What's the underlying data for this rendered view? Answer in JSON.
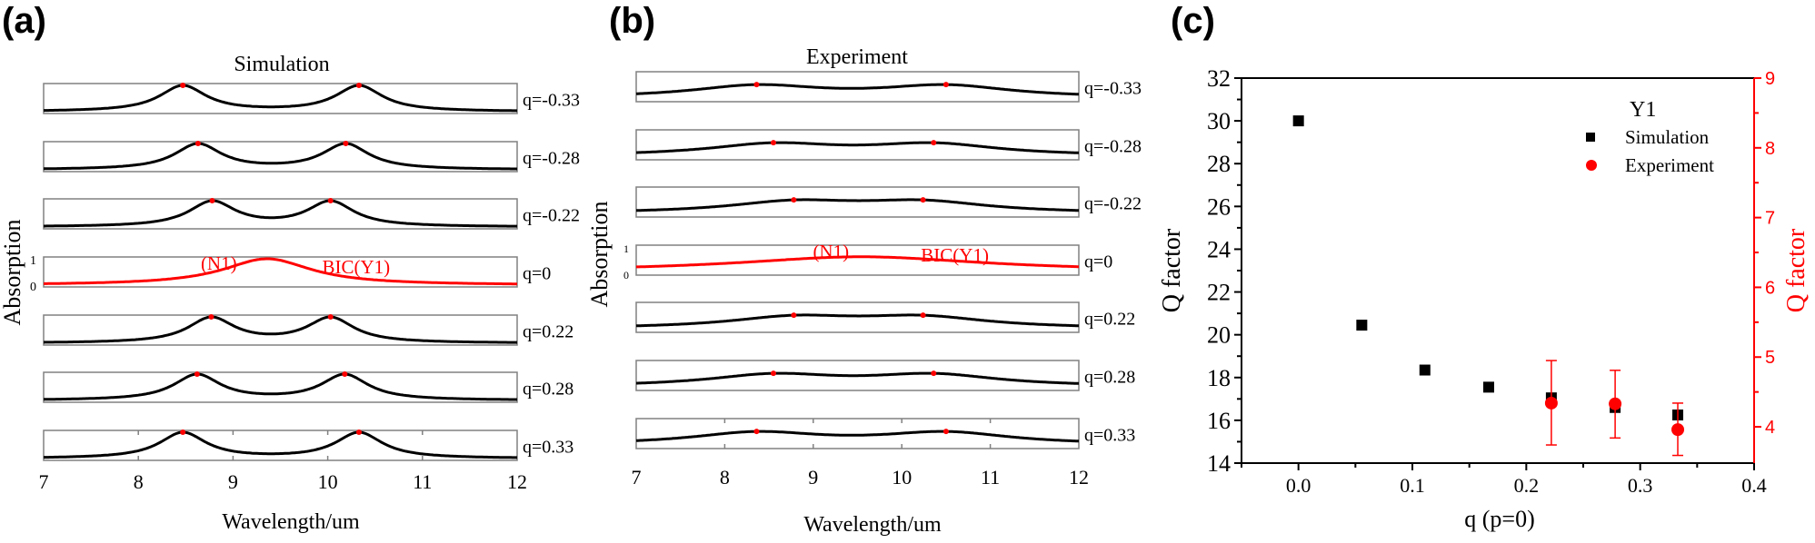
{
  "colors": {
    "black": "#000000",
    "red": "#ff0000",
    "frame": "#808080"
  },
  "chart_data": [
    {
      "type": "line",
      "panel_label": "(a)",
      "title": "Simulation",
      "xlabel": "Wavelength/um",
      "ylabel": "Absorption",
      "xlim": [
        7,
        12
      ],
      "ylim": [
        0,
        1
      ],
      "x_ticks": [
        "7",
        "8",
        "9",
        "10",
        "11",
        "12"
      ],
      "y_ticks_reference": [
        "0",
        "1"
      ],
      "annotations": [
        "(N1)",
        "BIC(Y1)"
      ],
      "series": [
        {
          "name": "q=-0.33",
          "peaks": [
            8.47,
            10.33
          ],
          "color": "#000000"
        },
        {
          "name": "q=-0.28",
          "peaks": [
            8.63,
            10.19
          ],
          "color": "#000000"
        },
        {
          "name": "q=-0.22",
          "peaks": [
            8.78,
            10.03
          ],
          "color": "#000000"
        },
        {
          "name": "q=0",
          "peaks": [
            9.36
          ],
          "color": "#ff0000"
        },
        {
          "name": "q=0.22",
          "peaks": [
            8.77,
            10.03
          ],
          "color": "#000000"
        },
        {
          "name": "q=0.28",
          "peaks": [
            8.62,
            10.18
          ],
          "color": "#000000"
        },
        {
          "name": "q=0.33",
          "peaks": [
            8.47,
            10.33
          ],
          "color": "#000000"
        }
      ]
    },
    {
      "type": "line",
      "panel_label": "(b)",
      "title": "Experiment",
      "xlabel": "Wavelength/um",
      "ylabel": "Absorption",
      "xlim": [
        7,
        12
      ],
      "ylim": [
        0,
        1
      ],
      "x_ticks": [
        "7",
        "8",
        "9",
        "10",
        "11",
        "12"
      ],
      "y_ticks_reference": [
        "0",
        "1"
      ],
      "annotations": [
        "(N1)",
        "BIC(Y1)"
      ],
      "series": [
        {
          "name": "q=-0.33",
          "peaks": [
            8.36,
            10.5
          ],
          "color": "#000000"
        },
        {
          "name": "q=-0.28",
          "peaks": [
            8.55,
            10.36
          ],
          "color": "#000000"
        },
        {
          "name": "q=-0.22",
          "peaks": [
            8.78,
            10.24
          ],
          "color": "#000000"
        },
        {
          "name": "q=0",
          "peaks": [
            9.54
          ],
          "color": "#ff0000"
        },
        {
          "name": "q=0.22",
          "peaks": [
            8.78,
            10.24
          ],
          "color": "#000000"
        },
        {
          "name": "q=0.28",
          "peaks": [
            8.55,
            10.36
          ],
          "color": "#000000"
        },
        {
          "name": "q=0.33",
          "peaks": [
            8.36,
            10.5
          ],
          "color": "#000000"
        }
      ]
    },
    {
      "type": "scatter",
      "panel_label": "(c)",
      "xlabel": "q (p=0)",
      "ylabel": "Q factor",
      "ylabel_right": "Q factor",
      "xlim": [
        -0.05,
        0.4
      ],
      "ylim": [
        14,
        32
      ],
      "ylim_right": [
        3.48,
        9
      ],
      "x_ticks": [
        "0.0",
        "0.1",
        "0.2",
        "0.3",
        "0.4"
      ],
      "y_ticks": [
        "14",
        "16",
        "18",
        "20",
        "22",
        "24",
        "26",
        "28",
        "30",
        "32"
      ],
      "y_ticks_right": [
        "4",
        "5",
        "6",
        "7",
        "8",
        "9"
      ],
      "legend": {
        "title": "Y1",
        "position": "top-right",
        "entries": [
          "Simulation",
          "Experiment"
        ]
      },
      "series": [
        {
          "name": "Simulation",
          "axis": "left",
          "marker": "square",
          "color": "#000000",
          "x": [
            0.0,
            0.0556,
            0.111,
            0.167,
            0.222,
            0.278,
            0.333
          ],
          "y": [
            30.0,
            20.45,
            18.35,
            17.55,
            17.05,
            16.6,
            16.25
          ]
        },
        {
          "name": "Experiment",
          "axis": "right",
          "marker": "circle",
          "color": "#ff0000",
          "x": [
            0.222,
            0.278,
            0.333
          ],
          "y": [
            4.34,
            4.33,
            3.96
          ],
          "err_low": [
            3.74,
            3.84,
            3.59
          ],
          "err_high": [
            4.95,
            4.81,
            4.34
          ]
        }
      ]
    }
  ]
}
